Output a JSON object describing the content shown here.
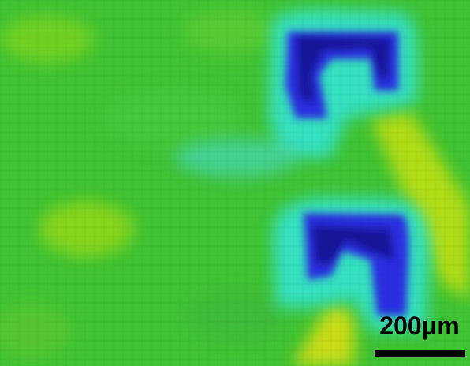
{
  "scale_bar": {
    "label": "200μm"
  }
}
